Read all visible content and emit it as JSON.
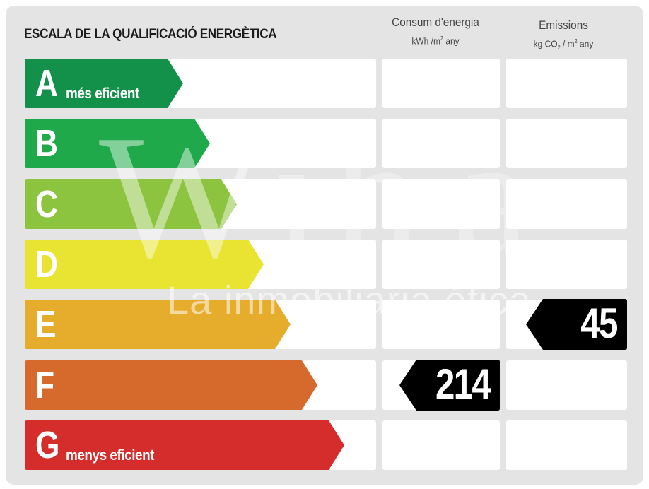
{
  "title": "ESCALA DE LA QUALIFICACIÓ ENERGÈTICA",
  "columns": {
    "consumption": {
      "label": "Consum d'energia",
      "unit_main": "kWh /m",
      "unit_sup": "2",
      "unit_tail": "  any"
    },
    "emissions": {
      "label": "Emissions",
      "unit_main": "kg CO",
      "unit_sub": "2",
      "unit_mid": "  / m",
      "unit_sup": "2",
      "unit_tail": "  any"
    }
  },
  "bands": [
    {
      "letter": "A",
      "note": "més eficient",
      "color": "#13904a"
    },
    {
      "letter": "B",
      "note": "",
      "color": "#20a94a"
    },
    {
      "letter": "C",
      "note": "",
      "color": "#8cc43f"
    },
    {
      "letter": "D",
      "note": "",
      "color": "#e8e431"
    },
    {
      "letter": "E",
      "note": "",
      "color": "#e6ac2c"
    },
    {
      "letter": "F",
      "note": "",
      "color": "#d6692c"
    },
    {
      "letter": "G",
      "note": "menys eficient",
      "color": "#d42d2c"
    }
  ],
  "ratings": {
    "consumption": {
      "band": "F",
      "value": "214"
    },
    "emissions": {
      "band": "E",
      "value": "45"
    }
  },
  "marker_color": "#000000",
  "watermark": {
    "logo": "W",
    "text": "La inmobiliaria ética"
  }
}
